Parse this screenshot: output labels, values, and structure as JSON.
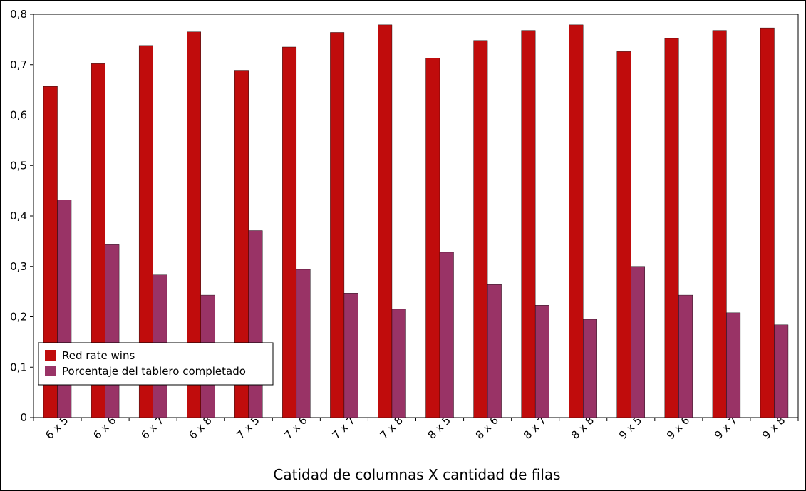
{
  "chart_data": {
    "type": "bar",
    "title": "",
    "xlabel": "Catidad de columnas X cantidad de filas",
    "ylabel": "",
    "ylim": [
      0,
      0.8
    ],
    "yticks": [
      0,
      0.1,
      0.2,
      0.3,
      0.4,
      0.5,
      0.6,
      0.7,
      0.8
    ],
    "ytick_labels": [
      "0",
      "0,1",
      "0,2",
      "0,3",
      "0,4",
      "0,5",
      "0,6",
      "0,7",
      "0,8"
    ],
    "categories": [
      "6 x 5",
      "6 x 6",
      "6 x 7",
      "6 x 8",
      "7 x 5",
      "7 x 6",
      "7 x 7",
      "7 x 8",
      "8 x 5",
      "8 x 6",
      "8 x 7",
      "8 x 8",
      "9 x 5",
      "9 x 6",
      "9 x 7",
      "9 x 8"
    ],
    "series": [
      {
        "name": "Red rate wins",
        "color": "#c00c0c",
        "values": [
          0.657,
          0.702,
          0.738,
          0.765,
          0.689,
          0.735,
          0.764,
          0.779,
          0.713,
          0.748,
          0.768,
          0.779,
          0.726,
          0.752,
          0.768,
          0.773
        ]
      },
      {
        "name": "Porcentaje del tablero completado",
        "color": "#993366",
        "values": [
          0.432,
          0.343,
          0.283,
          0.243,
          0.371,
          0.294,
          0.247,
          0.215,
          0.328,
          0.264,
          0.223,
          0.195,
          0.3,
          0.243,
          0.208,
          0.184
        ]
      }
    ],
    "grid": false,
    "legend_position": "bottom-left"
  }
}
